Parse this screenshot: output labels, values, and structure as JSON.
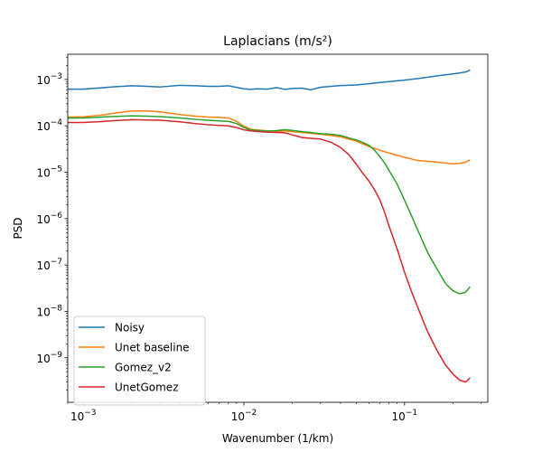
{
  "chart_data": {
    "type": "line",
    "title": "Laplacians (m/s²)",
    "xlabel": "Wavenumber (1/km)",
    "ylabel": "PSD",
    "xscale": "log",
    "yscale": "log",
    "xlim": [
      0.0008,
      0.33
    ],
    "ylim": [
      1.1e-10,
      0.0035
    ],
    "x_ticks": [
      {
        "value": 0.001,
        "base": "10",
        "exp": "−3"
      },
      {
        "value": 0.01,
        "base": "10",
        "exp": "−2"
      },
      {
        "value": 0.1,
        "base": "10",
        "exp": "−1"
      }
    ],
    "y_ticks": [
      {
        "value": 1e-09,
        "base": "10",
        "exp": "−9"
      },
      {
        "value": 1e-08,
        "base": "10",
        "exp": "−8"
      },
      {
        "value": 1e-07,
        "base": "10",
        "exp": "−7"
      },
      {
        "value": 1e-06,
        "base": "10",
        "exp": "−6"
      },
      {
        "value": 1e-05,
        "base": "10",
        "exp": "−5"
      },
      {
        "value": 0.0001,
        "base": "10",
        "exp": "−4"
      },
      {
        "value": 0.001,
        "base": "10",
        "exp": "−3"
      }
    ],
    "grid": false,
    "legend_position": "lower-left",
    "series": [
      {
        "name": "Noisy",
        "color": "#1f77b4",
        "points": [
          [
            0.0008,
            0.00062
          ],
          [
            0.001,
            0.00062
          ],
          [
            0.0013,
            0.00066
          ],
          [
            0.0016,
            0.0007
          ],
          [
            0.002,
            0.00073
          ],
          [
            0.0025,
            0.00071
          ],
          [
            0.003,
            0.00069
          ],
          [
            0.004,
            0.00075
          ],
          [
            0.005,
            0.00073
          ],
          [
            0.006,
            0.00071
          ],
          [
            0.007,
            0.00071
          ],
          [
            0.008,
            0.00073
          ],
          [
            0.01,
            0.00063
          ],
          [
            0.011,
            0.00061
          ],
          [
            0.012,
            0.00063
          ],
          [
            0.014,
            0.00062
          ],
          [
            0.016,
            0.00067
          ],
          [
            0.018,
            0.00061
          ],
          [
            0.02,
            0.00064
          ],
          [
            0.023,
            0.00065
          ],
          [
            0.026,
            0.0006
          ],
          [
            0.03,
            0.00068
          ],
          [
            0.035,
            0.00071
          ],
          [
            0.04,
            0.00074
          ],
          [
            0.05,
            0.00076
          ],
          [
            0.06,
            0.00081
          ],
          [
            0.07,
            0.00086
          ],
          [
            0.08,
            0.0009
          ],
          [
            0.1,
            0.00097
          ],
          [
            0.12,
            0.00104
          ],
          [
            0.14,
            0.00112
          ],
          [
            0.16,
            0.0012
          ],
          [
            0.18,
            0.00126
          ],
          [
            0.2,
            0.00132
          ],
          [
            0.22,
            0.00138
          ],
          [
            0.24,
            0.00145
          ],
          [
            0.256,
            0.0016
          ]
        ]
      },
      {
        "name": "Unet baseline",
        "color": "#ff7f0e",
        "points": [
          [
            0.0008,
            0.000155
          ],
          [
            0.001,
            0.000157
          ],
          [
            0.0013,
            0.00017
          ],
          [
            0.0016,
            0.00019
          ],
          [
            0.002,
            0.00021
          ],
          [
            0.0025,
            0.00021
          ],
          [
            0.003,
            0.0002
          ],
          [
            0.004,
            0.000175
          ],
          [
            0.005,
            0.000162
          ],
          [
            0.006,
            0.000155
          ],
          [
            0.007,
            0.000152
          ],
          [
            0.008,
            0.000148
          ],
          [
            0.009,
            0.000125
          ],
          [
            0.01,
            9.8e-05
          ],
          [
            0.011,
            8.5e-05
          ],
          [
            0.012,
            8.2e-05
          ],
          [
            0.014,
            7.8e-05
          ],
          [
            0.016,
            7.6e-05
          ],
          [
            0.018,
            7.8e-05
          ],
          [
            0.02,
            7.5e-05
          ],
          [
            0.023,
            7.2e-05
          ],
          [
            0.026,
            6.9e-05
          ],
          [
            0.03,
            6.6e-05
          ],
          [
            0.035,
            6.2e-05
          ],
          [
            0.04,
            5.8e-05
          ],
          [
            0.05,
            4.7e-05
          ],
          [
            0.06,
            3.6e-05
          ],
          [
            0.07,
            3e-05
          ],
          [
            0.08,
            2.6e-05
          ],
          [
            0.1,
            2.1e-05
          ],
          [
            0.12,
            1.8e-05
          ],
          [
            0.14,
            1.72e-05
          ],
          [
            0.16,
            1.65e-05
          ],
          [
            0.18,
            1.58e-05
          ],
          [
            0.2,
            1.52e-05
          ],
          [
            0.22,
            1.55e-05
          ],
          [
            0.24,
            1.65e-05
          ],
          [
            0.256,
            1.85e-05
          ]
        ]
      },
      {
        "name": "Gomez_v2",
        "color": "#2ca02c",
        "points": [
          [
            0.0008,
            0.000148
          ],
          [
            0.001,
            0.000148
          ],
          [
            0.0013,
            0.000155
          ],
          [
            0.0016,
            0.00016
          ],
          [
            0.002,
            0.000165
          ],
          [
            0.0025,
            0.000162
          ],
          [
            0.003,
            0.000158
          ],
          [
            0.004,
            0.000148
          ],
          [
            0.005,
            0.000138
          ],
          [
            0.006,
            0.000132
          ],
          [
            0.007,
            0.000128
          ],
          [
            0.008,
            0.000125
          ],
          [
            0.009,
            0.000112
          ],
          [
            0.01,
            9.2e-05
          ],
          [
            0.011,
            8.2e-05
          ],
          [
            0.012,
            8e-05
          ],
          [
            0.014,
            7.7e-05
          ],
          [
            0.016,
            7.9e-05
          ],
          [
            0.018,
            8.3e-05
          ],
          [
            0.02,
            8e-05
          ],
          [
            0.023,
            7.5e-05
          ],
          [
            0.026,
            7.2e-05
          ],
          [
            0.03,
            6.8e-05
          ],
          [
            0.035,
            6.6e-05
          ],
          [
            0.04,
            6.2e-05
          ],
          [
            0.045,
            5.5e-05
          ],
          [
            0.05,
            5e-05
          ],
          [
            0.055,
            4.4e-05
          ],
          [
            0.06,
            3.8e-05
          ],
          [
            0.065,
            3e-05
          ],
          [
            0.07,
            2.2e-05
          ],
          [
            0.075,
            1.6e-05
          ],
          [
            0.08,
            1.1e-05
          ],
          [
            0.09,
            5.5e-06
          ],
          [
            0.1,
            2.5e-06
          ],
          [
            0.11,
            1.2e-06
          ],
          [
            0.12,
            6e-07
          ],
          [
            0.13,
            3.2e-07
          ],
          [
            0.14,
            1.8e-07
          ],
          [
            0.16,
            8e-08
          ],
          [
            0.18,
            4e-08
          ],
          [
            0.2,
            2.8e-08
          ],
          [
            0.22,
            2.4e-08
          ],
          [
            0.24,
            2.6e-08
          ],
          [
            0.256,
            3.4e-08
          ]
        ]
      },
      {
        "name": "UnetGomez",
        "color": "#d62728",
        "points": [
          [
            0.0008,
            0.000118
          ],
          [
            0.001,
            0.000118
          ],
          [
            0.0013,
            0.000124
          ],
          [
            0.0016,
            0.00013
          ],
          [
            0.002,
            0.000136
          ],
          [
            0.0025,
            0.000134
          ],
          [
            0.003,
            0.000132
          ],
          [
            0.004,
            0.000122
          ],
          [
            0.005,
            0.000112
          ],
          [
            0.006,
            0.000106
          ],
          [
            0.007,
            0.000102
          ],
          [
            0.008,
            0.0001
          ],
          [
            0.009,
            9.2e-05
          ],
          [
            0.01,
            8.2e-05
          ],
          [
            0.011,
            7.8e-05
          ],
          [
            0.012,
            7.6e-05
          ],
          [
            0.014,
            7.3e-05
          ],
          [
            0.016,
            7.2e-05
          ],
          [
            0.018,
            7.1e-05
          ],
          [
            0.02,
            6.4e-05
          ],
          [
            0.023,
            5.6e-05
          ],
          [
            0.026,
            5.4e-05
          ],
          [
            0.03,
            5.2e-05
          ],
          [
            0.035,
            4.4e-05
          ],
          [
            0.04,
            3.4e-05
          ],
          [
            0.045,
            2.4e-05
          ],
          [
            0.05,
            1.5e-05
          ],
          [
            0.055,
            9.5e-06
          ],
          [
            0.06,
            6.5e-06
          ],
          [
            0.065,
            4.2e-06
          ],
          [
            0.07,
            2.6e-06
          ],
          [
            0.075,
            1.4e-06
          ],
          [
            0.08,
            7e-07
          ],
          [
            0.09,
            2.2e-07
          ],
          [
            0.1,
            7e-08
          ],
          [
            0.11,
            2.8e-08
          ],
          [
            0.12,
            1.3e-08
          ],
          [
            0.13,
            6.5e-09
          ],
          [
            0.14,
            3.5e-09
          ],
          [
            0.16,
            1.4e-09
          ],
          [
            0.18,
            7e-10
          ],
          [
            0.2,
            4.5e-10
          ],
          [
            0.22,
            3.3e-10
          ],
          [
            0.24,
            3e-10
          ],
          [
            0.256,
            3.7e-10
          ]
        ]
      }
    ]
  }
}
